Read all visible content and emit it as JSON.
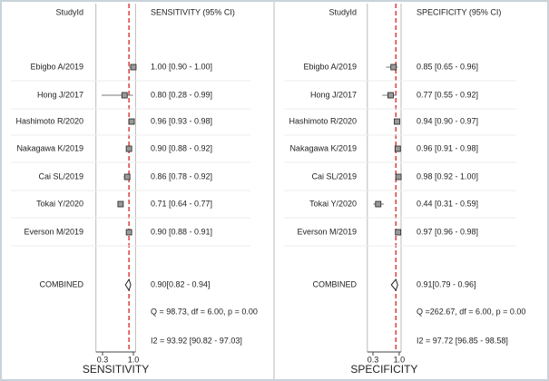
{
  "chart_data": [
    {
      "type": "forest",
      "id_header": "StudyId",
      "stat_header": "SENSITIVITY (95% CI)",
      "studies": [
        "Ebigbo A/2019",
        "Hong J/2017",
        "Hashimoto R/2020",
        "Nakagawa K/2019",
        "Cai SL/2019",
        "Tokai Y/2020",
        "Everson M/2019"
      ],
      "values": [
        1.0,
        0.8,
        0.96,
        0.9,
        0.86,
        0.71,
        0.9
      ],
      "lower": [
        0.9,
        0.28,
        0.93,
        0.88,
        0.78,
        0.64,
        0.88
      ],
      "upper": [
        1.0,
        0.99,
        0.98,
        0.92,
        0.92,
        0.77,
        0.91
      ],
      "value_labels": [
        "1.00 [0.90 - 1.00]",
        "0.80 [0.28 - 0.99]",
        "0.96 [0.93 - 0.98]",
        "0.90 [0.88 - 0.92]",
        "0.86 [0.78 - 0.92]",
        "0.71 [0.64 - 0.77]",
        "0.90 [0.88 - 0.91]"
      ],
      "combined_label": "COMBINED",
      "combined": {
        "value": 0.9,
        "lower": 0.82,
        "upper": 0.94,
        "label": "0.90[0.82 - 0.94]"
      },
      "heterogeneity": "Q = 98.73, df = 6.00, p =  0.00",
      "inconsistency": "I2 = 93.92 [90.82 - 97.03]",
      "xlabel": "SENSITIVITY",
      "xlim": [
        0.15,
        1.05
      ],
      "xticks": [
        0.3,
        {
          "value": 1,
          "label": "1.0"
        }
      ],
      "color": "#222222",
      "line_color": "#d62020"
    },
    {
      "type": "forest",
      "id_header": "StudyId",
      "stat_header": "SPECIFICITY (95% CI)",
      "studies": [
        "Ebigbo A/2019",
        "Hong J/2017",
        "Hashimoto R/2020",
        "Nakagawa K/2019",
        "Cai SL/2019",
        "Tokai Y/2020",
        "Everson M/2019"
      ],
      "values": [
        0.85,
        0.77,
        0.94,
        0.96,
        0.98,
        0.44,
        0.97
      ],
      "lower": [
        0.65,
        0.55,
        0.9,
        0.91,
        0.92,
        0.31,
        0.96
      ],
      "upper": [
        0.96,
        0.92,
        0.97,
        0.98,
        1.0,
        0.59,
        0.98
      ],
      "value_labels": [
        "0.85 [0.65 - 0.96]",
        "0.77 [0.55 - 0.92]",
        "0.94 [0.90 - 0.97]",
        "0.96 [0.91 - 0.98]",
        "0.98 [0.92 - 1.00]",
        "0.44 [0.31 - 0.59]",
        "0.97 [0.96 - 0.98]"
      ],
      "combined_label": "COMBINED",
      "combined": {
        "value": 0.91,
        "lower": 0.79,
        "upper": 0.96,
        "label": "0.91[0.79 - 0.96]"
      },
      "heterogeneity": "Q =262.67, df = 6.00, p =  0.00",
      "inconsistency": "I2 = 97.72 [96.85 - 98.58]",
      "xlabel": "SPECIFICITY",
      "xlim": [
        0.15,
        1.05
      ],
      "xticks": [
        0.3,
        {
          "value": 1,
          "label": "1.0"
        }
      ],
      "color": "#222222",
      "line_color": "#d62020"
    }
  ]
}
